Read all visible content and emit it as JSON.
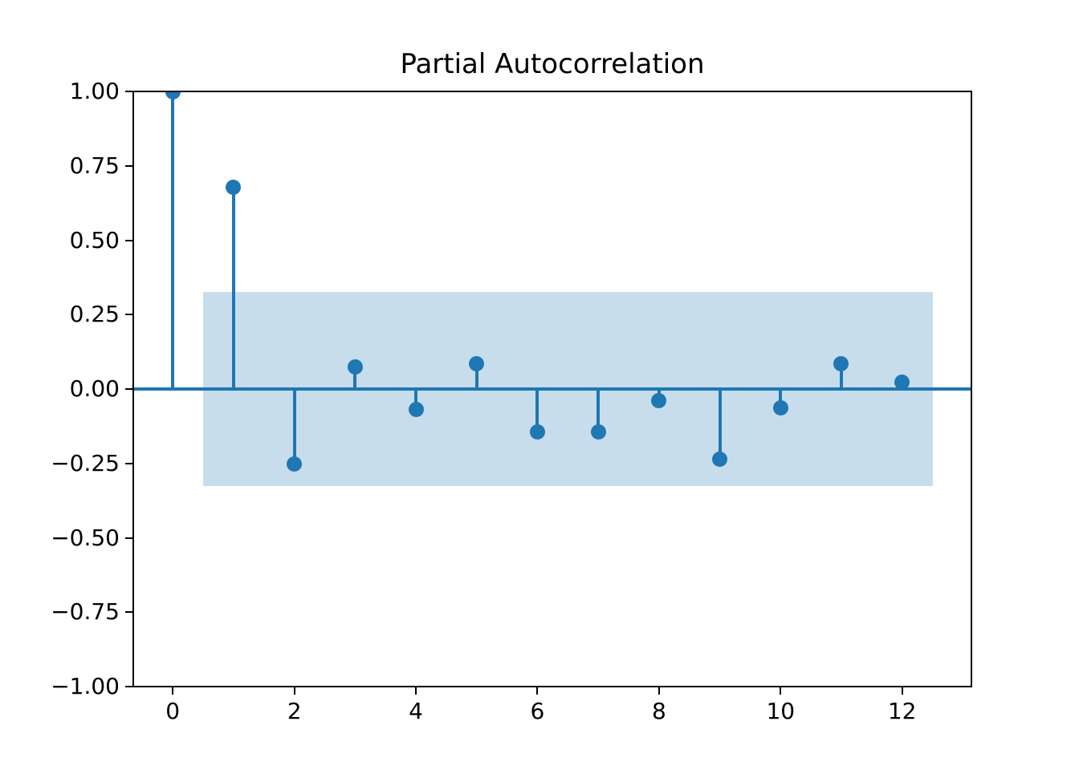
{
  "chart_data": {
    "type": "stem",
    "title": "Partial Autocorrelation",
    "xlabel": "",
    "ylabel": "",
    "x": [
      0,
      1,
      2,
      3,
      4,
      5,
      6,
      7,
      8,
      9,
      10,
      11,
      12
    ],
    "values": [
      1.0,
      0.677,
      -0.252,
      0.073,
      -0.07,
      0.084,
      -0.145,
      -0.143,
      -0.04,
      -0.235,
      -0.064,
      0.085,
      0.024
    ],
    "confidence_band": {
      "low": -0.325,
      "high": 0.325,
      "x_start": 0.5,
      "x_end": 12.5
    },
    "xlim": [
      -0.65,
      13.14
    ],
    "ylim": [
      -1.0,
      1.0
    ],
    "grid": false,
    "legend": null,
    "yticks": [
      {
        "v": 1.0,
        "label": "1.00"
      },
      {
        "v": 0.75,
        "label": "0.75"
      },
      {
        "v": 0.5,
        "label": "0.50"
      },
      {
        "v": 0.25,
        "label": "0.25"
      },
      {
        "v": 0.0,
        "label": "0.00"
      },
      {
        "v": -0.25,
        "label": "−0.25"
      },
      {
        "v": -0.5,
        "label": "−0.50"
      },
      {
        "v": -0.75,
        "label": "−0.75"
      },
      {
        "v": -1.0,
        "label": "−1.00"
      }
    ],
    "xticks": [
      {
        "v": 0,
        "label": "0"
      },
      {
        "v": 2,
        "label": "2"
      },
      {
        "v": 4,
        "label": "4"
      },
      {
        "v": 6,
        "label": "6"
      },
      {
        "v": 8,
        "label": "8"
      },
      {
        "v": 10,
        "label": "10"
      },
      {
        "v": 12,
        "label": "12"
      }
    ],
    "colors": {
      "stem": "#1f77b4",
      "marker": "#1f77b4",
      "zero_line": "#1f77b4",
      "band": "#c7ddec",
      "axis": "#000000",
      "background": "#ffffff"
    }
  }
}
